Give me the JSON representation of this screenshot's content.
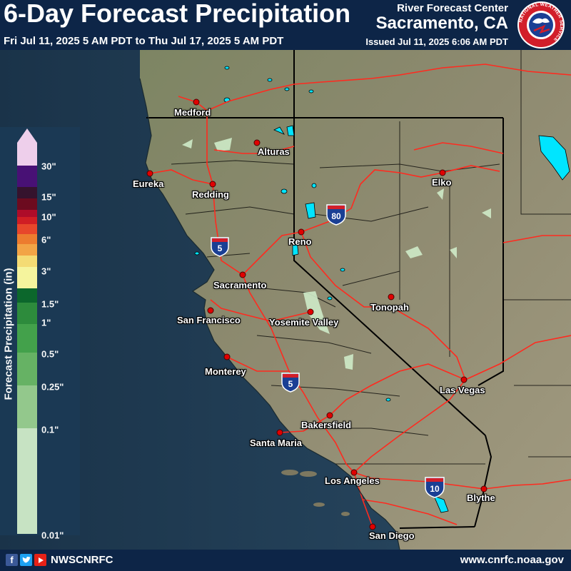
{
  "header": {
    "title": "6-Day Forecast Precipitation",
    "subtitle": "Fri Jul 11, 2025 5 AM PDT to Thu Jul 17, 2025 5 AM PDT",
    "center": "River Forecast Center",
    "city": "Sacramento, CA",
    "issued": "Issued Jul 11, 2025 6:06 AM PDT"
  },
  "logo": {
    "name": "National Weather Service",
    "icon": "nws-seal-icon",
    "text": "NATIONAL WEATHER SERVICE"
  },
  "legend": {
    "title": "Forecast Precipitation (in)",
    "ticks": [
      "30\"",
      "15\"",
      "10\"",
      "6\"",
      "3\"",
      "1.5\"",
      "1\"",
      "0.5\"",
      "0.25\"",
      "0.1\"",
      "0.01\""
    ],
    "colors": [
      "#f7d6f2",
      "#4a1077",
      "#37122c",
      "#700a1e",
      "#b40b28",
      "#d81e23",
      "#f0482a",
      "#f57f2e",
      "#fba946",
      "#fde276",
      "#fefca1",
      "#0c6a2b",
      "#2e8f3c",
      "#45a64c",
      "#6ab866",
      "#98cf8f",
      "#cfebc8"
    ]
  },
  "map": {
    "cities": [
      "Medford",
      "Alturas",
      "Eureka",
      "Redding",
      "Reno",
      "Elko",
      "Sacramento",
      "San Francisco",
      "Yosemite Valley",
      "Tonopah",
      "Monterey",
      "Las Vegas",
      "Bakersfield",
      "Santa Maria",
      "Los Angeles",
      "Blythe",
      "San Diego"
    ],
    "shields": [
      "80",
      "5",
      "5",
      "10"
    ],
    "colors": {
      "land": "#8d8a70",
      "ocean": "#1f3a52",
      "roads": "#ff2a1f",
      "borders": "#000000",
      "water": "#00e5ff",
      "precip": "#cfebc8"
    }
  },
  "footer": {
    "handle": "NWSCNRFC",
    "url": "www.cnrfc.noaa.gov",
    "social_icons": [
      "facebook-icon",
      "twitter-icon",
      "youtube-icon"
    ]
  }
}
